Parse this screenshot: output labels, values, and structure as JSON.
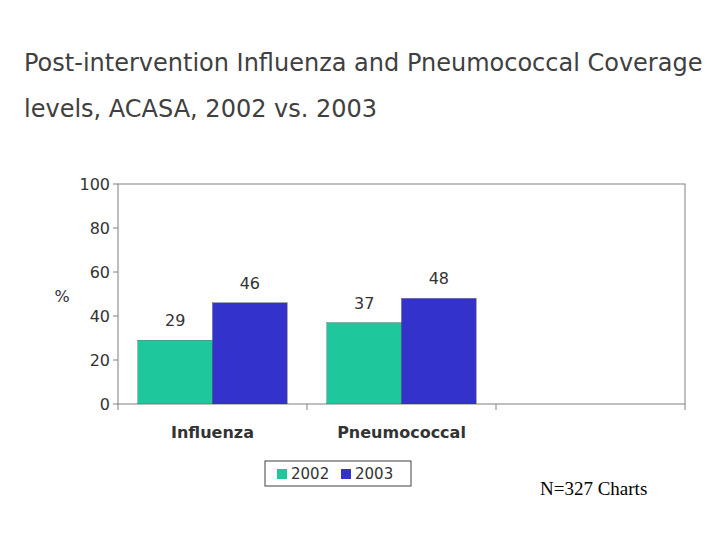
{
  "chart_data": {
    "type": "bar",
    "title": "Post-intervention Influenza and Pneumococcal Coverage levels, ACASA, 2002 vs. 2003",
    "y_label": "%",
    "categories": [
      "Influenza",
      "Pneumococcal",
      null
    ],
    "series": [
      {
        "name": "2002",
        "color": "#1fc79c",
        "values": [
          29,
          37,
          null
        ]
      },
      {
        "name": "2003",
        "color": "#3333cc",
        "values": [
          46,
          48,
          null
        ]
      }
    ],
    "ylim": [
      0,
      100
    ],
    "yticks": [
      0,
      20,
      40,
      60,
      80,
      100
    ],
    "grid": false,
    "data_labels": true,
    "legend": "bottom",
    "annotations": [
      "N=327 Charts"
    ]
  }
}
